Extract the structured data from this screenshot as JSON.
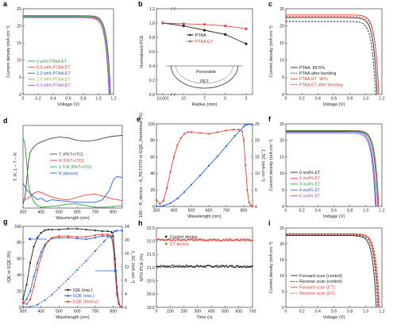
{
  "chart_data": [
    {
      "id": "a",
      "type": "line",
      "panel_label": "a",
      "xlabel": "Voltage (V)",
      "ylabel": "Current density (mA cm⁻²)",
      "xlim": [
        0,
        1.2
      ],
      "ylim": [
        0,
        25
      ],
      "xticks": [
        "0",
        "0.2",
        "0.4",
        "0.6",
        "0.8",
        "1.0",
        "1.2"
      ],
      "yticks": [
        "0",
        "5",
        "10",
        "15",
        "20",
        "25"
      ],
      "legend_loc": "lower-left",
      "series": [
        {
          "name": "0 wt% PTAA:ET",
          "color": "#2e9e3a",
          "jsc": 22.6,
          "voc": 1.15
        },
        {
          "name": "0.5 wt% PTAA:ET",
          "color": "#e8403a",
          "jsc": 23.0,
          "voc": 1.16
        },
        {
          "name": "1.0 wt% PTAA:ET",
          "color": "#2c5fd6",
          "jsc": 22.8,
          "voc": 1.16
        },
        {
          "name": "2.0 wt% PTAA:ET",
          "color": "#7fbf3a",
          "jsc": 22.7,
          "voc": 1.15
        },
        {
          "name": "5.0 wt% PTAA:ET",
          "color": "#c03ad0",
          "jsc": 22.4,
          "voc": 1.14
        }
      ]
    },
    {
      "id": "b",
      "type": "line",
      "panel_label": "b",
      "xlabel": "Radius (mm)",
      "ylabel": "Normalized PCE",
      "categories": [
        "10,001",
        "10",
        "7",
        "5",
        "3"
      ],
      "ylim": [
        0.0,
        1.2
      ],
      "yticks": [
        "0.0",
        "0.2",
        "0.4",
        "0.6",
        "0.8",
        "1.0",
        "1.2"
      ],
      "legend_loc": "top-center",
      "inset_labels": [
        "Perovskite",
        "PET"
      ],
      "series": [
        {
          "name": "PTAA",
          "color": "#222222",
          "values": [
            1.0,
            0.96,
            0.9,
            0.84,
            0.71
          ]
        },
        {
          "name": "PTAA:ET",
          "color": "#e8403a",
          "values": [
            1.0,
            0.99,
            0.98,
            0.96,
            0.92
          ]
        }
      ]
    },
    {
      "id": "c",
      "type": "line",
      "panel_label": "c",
      "xlabel": "Voltage (V)",
      "ylabel": "Current density (mA cm⁻²)",
      "xlim": [
        0,
        1.2
      ],
      "ylim": [
        0,
        25
      ],
      "xticks": [
        "0",
        "0.2",
        "0.4",
        "0.6",
        "0.8",
        "1.0",
        "1.2"
      ],
      "yticks": [
        "0",
        "5",
        "10",
        "15",
        "20",
        "25"
      ],
      "legend_loc": "lower-left",
      "series": [
        {
          "name": "PTAA",
          "value_label": "89.5%",
          "color": "#222222",
          "dash": false,
          "jsc": 22.4,
          "voc": 1.14
        },
        {
          "name": "PTAA after bending",
          "value_label": "",
          "color": "#222222",
          "dash": true,
          "jsc": 21.3,
          "voc": 1.12
        },
        {
          "name": "PTAA:ET",
          "value_label": "96%",
          "color": "#e8403a",
          "dash": false,
          "jsc": 23.2,
          "voc": 1.16
        },
        {
          "name": "PTAA:ET after bending",
          "value_label": "",
          "color": "#e8403a",
          "dash": true,
          "jsc": 22.8,
          "voc": 1.16
        }
      ]
    },
    {
      "id": "d",
      "type": "line",
      "panel_label": "d",
      "xlabel": "Wavelength (nm)",
      "ylabel": "T, R, 1 – T – R",
      "xlim": [
        300,
        850
      ],
      "ylim": [
        0,
        1
      ],
      "xticks": [
        "300",
        "400",
        "500",
        "600",
        "700",
        "800"
      ],
      "legend_loc": "center",
      "series": [
        {
          "name": "T (PET+ITO)",
          "color": "#444444",
          "x": [
            300,
            310,
            320,
            330,
            340,
            360,
            380,
            400,
            450,
            500,
            550,
            600,
            650,
            700,
            750,
            800,
            850
          ],
          "y": [
            0.05,
            0.12,
            0.32,
            0.55,
            0.68,
            0.74,
            0.78,
            0.8,
            0.84,
            0.86,
            0.85,
            0.82,
            0.81,
            0.82,
            0.85,
            0.87,
            0.88
          ]
        },
        {
          "name": "R (PET+ITO)",
          "color": "#e8403a",
          "x": [
            300,
            320,
            340,
            360,
            380,
            400,
            450,
            500,
            550,
            600,
            650,
            700,
            750,
            800,
            850
          ],
          "y": [
            0.1,
            0.11,
            0.14,
            0.18,
            0.2,
            0.19,
            0.14,
            0.11,
            0.1,
            0.13,
            0.16,
            0.17,
            0.14,
            0.11,
            0.09
          ]
        },
        {
          "name": "1-T-R (PET+ITO)",
          "color": "#2e9e3a",
          "x": [
            300,
            310,
            320,
            330,
            340,
            360,
            380,
            400,
            450,
            500,
            550,
            600,
            650,
            700,
            750,
            800,
            850
          ],
          "y": [
            0.85,
            0.78,
            0.56,
            0.3,
            0.18,
            0.08,
            0.03,
            0.01,
            0.02,
            0.03,
            0.05,
            0.05,
            0.03,
            0.01,
            0.01,
            0.02,
            0.03
          ]
        },
        {
          "name": "R (device)",
          "color": "#2c5fd6",
          "x": [
            300,
            320,
            340,
            360,
            380,
            400,
            430,
            460,
            500,
            550,
            600,
            650,
            700,
            740,
            780,
            800,
            820,
            850
          ],
          "y": [
            0.3,
            0.22,
            0.18,
            0.14,
            0.1,
            0.12,
            0.08,
            0.1,
            0.09,
            0.08,
            0.07,
            0.07,
            0.07,
            0.1,
            0.22,
            0.34,
            0.38,
            0.37
          ]
        }
      ]
    },
    {
      "id": "e",
      "type": "line",
      "panel_label": "e",
      "xlabel": "Wavelength (nm)",
      "ylabel": "100 – R_device – A_PET/ITO or EQE_theoretical (%)",
      "y2label": "J_SC (mA cm⁻²)",
      "xlim": [
        300,
        850
      ],
      "ylim": [
        0,
        100
      ],
      "y2lim": [
        0,
        25
      ],
      "xticks": [
        "300",
        "400",
        "500",
        "600",
        "700",
        "800"
      ],
      "yticks": [
        "0",
        "20",
        "40",
        "60",
        "80",
        "100"
      ],
      "y2ticks": [
        "0",
        "5",
        "10",
        "15",
        "20",
        "25"
      ],
      "series": [
        {
          "name": "EQE theoretical",
          "color": "#e8403a",
          "axis": "left",
          "x": [
            300,
            320,
            340,
            360,
            380,
            400,
            420,
            440,
            460,
            480,
            500,
            550,
            600,
            650,
            700,
            740,
            770,
            790,
            800,
            810,
            820,
            830,
            840,
            850
          ],
          "y": [
            8,
            3,
            7,
            22,
            42,
            60,
            74,
            83,
            88,
            90,
            90,
            89,
            88,
            90,
            92,
            93,
            93,
            91,
            80,
            50,
            20,
            5,
            1,
            0
          ]
        },
        {
          "name": "J_SC integrated",
          "color": "#2c5fd6",
          "axis": "right",
          "x": [
            300,
            340,
            380,
            420,
            460,
            500,
            550,
            600,
            650,
            700,
            750,
            800,
            810,
            820,
            850
          ],
          "y": [
            0,
            0.2,
            1.0,
            2.4,
            4.4,
            6.6,
            9.4,
            12.3,
            15.2,
            18.3,
            21.4,
            24.2,
            24.7,
            24.8,
            24.8
          ]
        }
      ]
    },
    {
      "id": "f",
      "type": "line",
      "panel_label": "f",
      "xlabel": "Voltage (V)",
      "ylabel": "Current density (mA cm⁻²)",
      "xlim": [
        0,
        1.2
      ],
      "ylim": [
        0,
        25
      ],
      "xticks": [
        "0",
        "0.2",
        "0.4",
        "0.6",
        "0.8",
        "1.0",
        "1.2"
      ],
      "yticks": [
        "0",
        "5",
        "10",
        "15",
        "20",
        "25"
      ],
      "legend_loc": "lower-left",
      "series": [
        {
          "name": "0 mol% ET",
          "color": "#222222",
          "jsc": 22.8,
          "voc": 1.15
        },
        {
          "name": "1 mol% ET",
          "color": "#e8403a",
          "jsc": 23.0,
          "voc": 1.16
        },
        {
          "name": "3 mol% ET",
          "color": "#2e9e3a",
          "jsc": 22.9,
          "voc": 1.15
        },
        {
          "name": "4 mol% ET",
          "color": "#2c5fd6",
          "jsc": 22.6,
          "voc": 1.13
        },
        {
          "name": "6 mol% ET",
          "color": "#9b4bd0",
          "jsc": 22.2,
          "voc": 1.12
        }
      ]
    },
    {
      "id": "g",
      "type": "line",
      "panel_label": "g",
      "xlabel": "Wavelength (nm)",
      "ylabel": "IQE or EQE (%)",
      "y2label": "J_SC (mA cm⁻²)",
      "xlim": [
        300,
        850
      ],
      "ylim": [
        0,
        100
      ],
      "y2lim": [
        0,
        24
      ],
      "xticks": [
        "300",
        "400",
        "500",
        "600",
        "700",
        "800"
      ],
      "yticks": [
        "0",
        "20",
        "40",
        "60",
        "80",
        "100"
      ],
      "y2ticks": [
        "0",
        "4",
        "8",
        "12",
        "16",
        "20",
        "24"
      ],
      "legend_loc": "bottom-center",
      "series": [
        {
          "name": "IQE (exp.)",
          "color": "#222222",
          "axis": "left",
          "x": [
            300,
            320,
            340,
            360,
            380,
            400,
            420,
            440,
            460,
            500,
            550,
            600,
            650,
            700,
            740,
            770,
            790,
            800,
            810,
            820,
            830,
            840,
            850
          ],
          "y": [
            10,
            28,
            55,
            75,
            86,
            92,
            95,
            96,
            96,
            96,
            97,
            97,
            96,
            95,
            94,
            94,
            93,
            88,
            60,
            25,
            6,
            1,
            0
          ]
        },
        {
          "name": "EQE (exp.)",
          "color": "#2c5fd6",
          "axis": "left",
          "x": [
            300,
            320,
            340,
            360,
            380,
            400,
            420,
            440,
            460,
            500,
            550,
            600,
            650,
            700,
            740,
            770,
            790,
            800,
            810,
            820,
            830,
            840,
            850
          ],
          "y": [
            5,
            10,
            20,
            38,
            55,
            68,
            77,
            82,
            85,
            86,
            86,
            85,
            84,
            86,
            88,
            88,
            86,
            76,
            45,
            16,
            4,
            1,
            0
          ]
        },
        {
          "name": "EQE (theory)",
          "color": "#e8403a",
          "axis": "left",
          "x": [
            300,
            320,
            340,
            360,
            380,
            400,
            420,
            440,
            460,
            500,
            550,
            600,
            650,
            700,
            740,
            770,
            790,
            800,
            810,
            820,
            830,
            840,
            850
          ],
          "y": [
            6,
            4,
            10,
            26,
            46,
            62,
            75,
            82,
            86,
            88,
            88,
            87,
            87,
            89,
            90,
            90,
            88,
            78,
            48,
            18,
            4,
            1,
            0
          ]
        },
        {
          "name": "J_SC integrated",
          "color": "#2c5fd6",
          "axis": "right",
          "x": [
            300,
            340,
            380,
            420,
            460,
            500,
            550,
            600,
            650,
            700,
            750,
            800,
            810,
            820,
            850
          ],
          "y": [
            0,
            0.2,
            0.8,
            2.1,
            3.8,
            5.8,
            8.4,
            11.1,
            13.8,
            16.7,
            19.6,
            22.2,
            22.6,
            22.7,
            22.7
          ]
        }
      ]
    },
    {
      "id": "h",
      "type": "scatter",
      "panel_label": "h",
      "xlabel": "Time (s)",
      "ylabel": "SPO PCE (%)",
      "xlim": [
        0,
        700
      ],
      "ylim": [
        19.5,
        22.5
      ],
      "xticks": [
        "0",
        "100",
        "200",
        "300",
        "400",
        "500",
        "600",
        "700"
      ],
      "yticks": [
        "19.5",
        "20.0",
        "20.5",
        "21.0",
        "21.5",
        "22.0",
        "22.5"
      ],
      "legend_loc": "top-left",
      "series": [
        {
          "name": "Control device",
          "color": "#222222",
          "mean": 21.05,
          "noise": 0.04
        },
        {
          "name": "ET device",
          "color": "#e8403a",
          "mean": 22.05,
          "noise": 0.04
        }
      ]
    },
    {
      "id": "i",
      "type": "line",
      "panel_label": "i",
      "xlabel": "Voltage (V)",
      "ylabel": "Current density (mA cm⁻²)",
      "xlim": [
        0,
        1.2
      ],
      "ylim": [
        0,
        25
      ],
      "xticks": [
        "0",
        "0.2",
        "0.4",
        "0.6",
        "0.8",
        "1.0",
        "1.2"
      ],
      "yticks": [
        "0",
        "5",
        "10",
        "15",
        "20",
        "25"
      ],
      "legend_loc": "lower-left",
      "series": [
        {
          "name": "Forward scan (control)",
          "color": "#222222",
          "dash": false,
          "jsc": 22.6,
          "voc": 1.13
        },
        {
          "name": "Reverse scan (control)",
          "color": "#222222",
          "dash": true,
          "jsc": 22.8,
          "voc": 1.15
        },
        {
          "name": "Forward scan (ET)",
          "color": "#e8403a",
          "dash": false,
          "jsc": 23.1,
          "voc": 1.16
        },
        {
          "name": "Reverse scan (ET)",
          "color": "#e8403a",
          "dash": true,
          "jsc": 23.2,
          "voc": 1.17
        }
      ]
    }
  ]
}
